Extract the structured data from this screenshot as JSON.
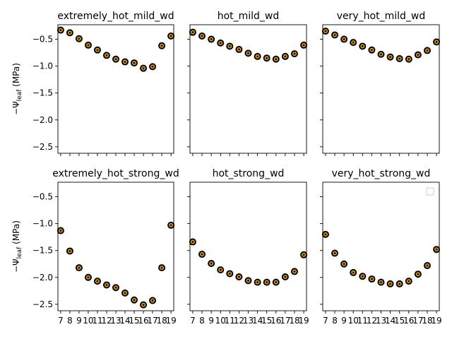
{
  "chart_data": [
    {
      "type": "scatter",
      "title": "extremely_hot_mild_wd",
      "ylabel_main": "−Ψ",
      "ylabel_sub": "leaf",
      "ylabel_unit": "(MPa)",
      "xlim": [
        6.7,
        19.3
      ],
      "ylim": [
        -2.62,
        -0.23
      ],
      "xticks": [
        7,
        8,
        9,
        10,
        11,
        12,
        13,
        14,
        15,
        16,
        17,
        18,
        19
      ],
      "yticks": [
        -0.5,
        -1.0,
        -1.5,
        -2.0,
        -2.5
      ],
      "x": [
        7,
        8,
        9,
        10,
        11,
        12,
        13,
        14,
        15,
        16,
        17,
        18,
        19
      ],
      "y": [
        -0.33,
        -0.38,
        -0.49,
        -0.61,
        -0.7,
        -0.8,
        -0.87,
        -0.92,
        -0.94,
        -1.04,
        -1.01,
        -0.62,
        -0.44
      ]
    },
    {
      "type": "scatter",
      "title": "hot_mild_wd",
      "xlim": [
        6.7,
        19.3
      ],
      "ylim": [
        -2.62,
        -0.23
      ],
      "xticks": [
        7,
        8,
        9,
        10,
        11,
        12,
        13,
        14,
        15,
        16,
        17,
        18,
        19
      ],
      "yticks": [
        -0.5,
        -1.0,
        -1.5,
        -2.0,
        -2.5
      ],
      "x": [
        7,
        8,
        9,
        10,
        11,
        12,
        13,
        14,
        15,
        16,
        17,
        18,
        19
      ],
      "y": [
        -0.37,
        -0.44,
        -0.5,
        -0.57,
        -0.63,
        -0.69,
        -0.76,
        -0.82,
        -0.85,
        -0.87,
        -0.82,
        -0.77,
        -0.61
      ]
    },
    {
      "type": "scatter",
      "title": "very_hot_mild_wd",
      "xlim": [
        6.7,
        19.3
      ],
      "ylim": [
        -2.62,
        -0.23
      ],
      "xticks": [
        7,
        8,
        9,
        10,
        11,
        12,
        13,
        14,
        15,
        16,
        17,
        18,
        19
      ],
      "yticks": [
        -0.5,
        -1.0,
        -1.5,
        -2.0,
        -2.5
      ],
      "x": [
        7,
        8,
        9,
        10,
        11,
        12,
        13,
        14,
        15,
        16,
        17,
        18,
        19
      ],
      "y": [
        -0.35,
        -0.42,
        -0.5,
        -0.56,
        -0.63,
        -0.7,
        -0.78,
        -0.83,
        -0.86,
        -0.87,
        -0.79,
        -0.71,
        -0.55
      ]
    },
    {
      "type": "scatter",
      "title": "extremely_hot_strong_wd",
      "ylabel_main": "−Ψ",
      "ylabel_sub": "leaf",
      "ylabel_unit": "(MPa)",
      "xlim": [
        6.7,
        19.3
      ],
      "ylim": [
        -2.62,
        -0.23
      ],
      "xticks": [
        7,
        8,
        9,
        10,
        11,
        12,
        13,
        14,
        15,
        16,
        17,
        18,
        19
      ],
      "xticklabels": [
        "7",
        "8",
        "9",
        "10",
        "11",
        "12",
        "13",
        "14",
        "15",
        "16",
        "17",
        "18",
        "19"
      ],
      "yticks": [
        -0.5,
        -1.0,
        -1.5,
        -2.0,
        -2.5
      ],
      "x": [
        7,
        8,
        9,
        10,
        11,
        12,
        13,
        14,
        15,
        16,
        17,
        18,
        19
      ],
      "y": [
        -1.13,
        -1.51,
        -1.82,
        -2.0,
        -2.07,
        -2.14,
        -2.19,
        -2.29,
        -2.42,
        -2.51,
        -2.43,
        -1.82,
        -1.03
      ]
    },
    {
      "type": "scatter",
      "title": "hot_strong_wd",
      "xlim": [
        6.7,
        19.3
      ],
      "ylim": [
        -2.62,
        -0.23
      ],
      "xticks": [
        7,
        8,
        9,
        10,
        11,
        12,
        13,
        14,
        15,
        16,
        17,
        18,
        19
      ],
      "xticklabels": [
        "7",
        "8",
        "9",
        "10",
        "11",
        "12",
        "13",
        "14",
        "15",
        "16",
        "17",
        "18",
        "19"
      ],
      "yticks": [
        -0.5,
        -1.0,
        -1.5,
        -2.0,
        -2.5
      ],
      "x": [
        7,
        8,
        9,
        10,
        11,
        12,
        13,
        14,
        15,
        16,
        17,
        18,
        19
      ],
      "y": [
        -1.34,
        -1.57,
        -1.74,
        -1.86,
        -1.93,
        -1.99,
        -2.06,
        -2.09,
        -2.09,
        -2.09,
        -1.99,
        -1.89,
        -1.58
      ]
    },
    {
      "type": "scatter",
      "title": "very_hot_strong_wd",
      "legend": "upper-right",
      "xlim": [
        6.7,
        19.3
      ],
      "ylim": [
        -2.62,
        -0.23
      ],
      "xticks": [
        7,
        8,
        9,
        10,
        11,
        12,
        13,
        14,
        15,
        16,
        17,
        18,
        19
      ],
      "xticklabels": [
        "7",
        "8",
        "9",
        "10",
        "11",
        "12",
        "13",
        "14",
        "15",
        "16",
        "17",
        "18",
        "19"
      ],
      "yticks": [
        -0.5,
        -1.0,
        -1.5,
        -2.0,
        -2.5
      ],
      "x": [
        7,
        8,
        9,
        10,
        11,
        12,
        13,
        14,
        15,
        16,
        17,
        18,
        19
      ],
      "y": [
        -1.2,
        -1.55,
        -1.75,
        -1.91,
        -1.98,
        -2.03,
        -2.09,
        -2.12,
        -2.12,
        -2.07,
        -1.94,
        -1.78,
        -1.48
      ]
    }
  ],
  "style": {
    "marker_edge": "#000000",
    "marker_fill": "#f5a623",
    "marker_center": "#1f1f1f"
  }
}
